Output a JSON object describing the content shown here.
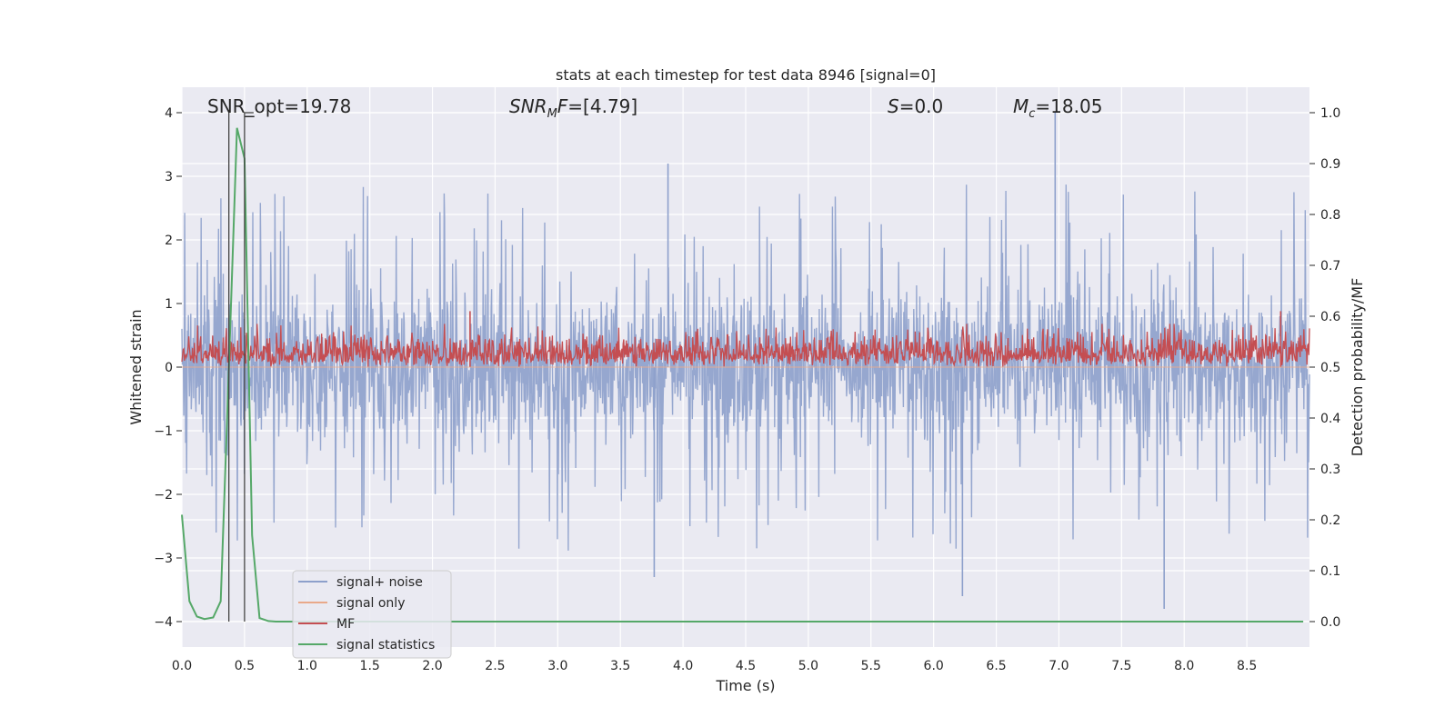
{
  "chart_data": {
    "type": "line",
    "title": "stats at each timestep for test data 8946 [signal=0]",
    "xlabel": "Time (s)",
    "ylabel_left": "Whitened strain",
    "ylabel_right": "Detection probability/MF",
    "xlim": [
      0.0,
      9.0
    ],
    "ylim_left": [
      -4.4,
      4.4
    ],
    "ylim_right": [
      -0.05,
      1.05
    ],
    "x_ticks": [
      "0.0",
      "0.5",
      "1.0",
      "1.5",
      "2.0",
      "2.5",
      "3.0",
      "3.5",
      "4.0",
      "4.5",
      "5.0",
      "5.5",
      "6.0",
      "6.5",
      "7.0",
      "7.5",
      "8.0",
      "8.5"
    ],
    "y_ticks_left": [
      "4",
      "3",
      "2",
      "1",
      "0",
      "−1",
      "−2",
      "−3",
      "−4"
    ],
    "y_ticks_right": [
      "1.0",
      "0.9",
      "0.8",
      "0.7",
      "0.6",
      "0.5",
      "0.4",
      "0.3",
      "0.2",
      "0.1",
      "0.0"
    ],
    "grid": true,
    "legend_position": "lower-left",
    "annotations": {
      "snr_opt": "SNR_opt=19.78",
      "snr_mf_base": "SNR",
      "snr_mf_sub": "M",
      "snr_mf_rest": "F=[4.79]",
      "s_base": "S",
      "s_rest": "=0.0",
      "mc_base": "M",
      "mc_sub": "c",
      "mc_rest": "=18.05"
    },
    "vertical_lines_s": [
      0.375,
      0.5
    ],
    "series": [
      {
        "name": "signal+ noise",
        "color": "#8da0cb",
        "axis": "left",
        "description": "whitened strain noise, approx uniform band mostly between -1.5 and 1.5 with spikes to about +4.0 and -3.8",
        "peaks": [
          {
            "x": 6.97,
            "y": 4.0
          },
          {
            "x": 3.88,
            "y": 3.2
          },
          {
            "x": 7.84,
            "y": -3.8
          },
          {
            "x": 6.23,
            "y": -3.6
          },
          {
            "x": 3.77,
            "y": -3.3
          }
        ]
      },
      {
        "name": "signal only",
        "color": "#e9a98a",
        "axis": "left",
        "x": [
          0.0,
          9.0
        ],
        "y": [
          0.0,
          0.0
        ]
      },
      {
        "name": "MF",
        "color": "#c44e52",
        "axis": "right",
        "description": "matched filter output, approx 0.5 to 0.58 with spikes near 0.61",
        "peaks": [
          {
            "x": 2.3,
            "y": 0.61
          },
          {
            "x": 8.77,
            "y": 0.61
          }
        ]
      },
      {
        "name": "signal statistics",
        "color": "#55a868",
        "axis": "right",
        "x": [
          0.0,
          0.06,
          0.12,
          0.18,
          0.25,
          0.31,
          0.375,
          0.44,
          0.5,
          0.56,
          0.62,
          0.69,
          0.75,
          1.0,
          2.0,
          3.0,
          4.0,
          5.0,
          6.0,
          7.0,
          8.0,
          8.95
        ],
        "y": [
          0.21,
          0.04,
          0.01,
          0.005,
          0.008,
          0.04,
          0.5,
          0.97,
          0.91,
          0.17,
          0.007,
          0.001,
          0.0,
          0.0,
          0.0,
          0.0,
          0.0,
          0.0,
          0.0,
          0.0,
          0.0,
          0.0
        ]
      }
    ]
  }
}
